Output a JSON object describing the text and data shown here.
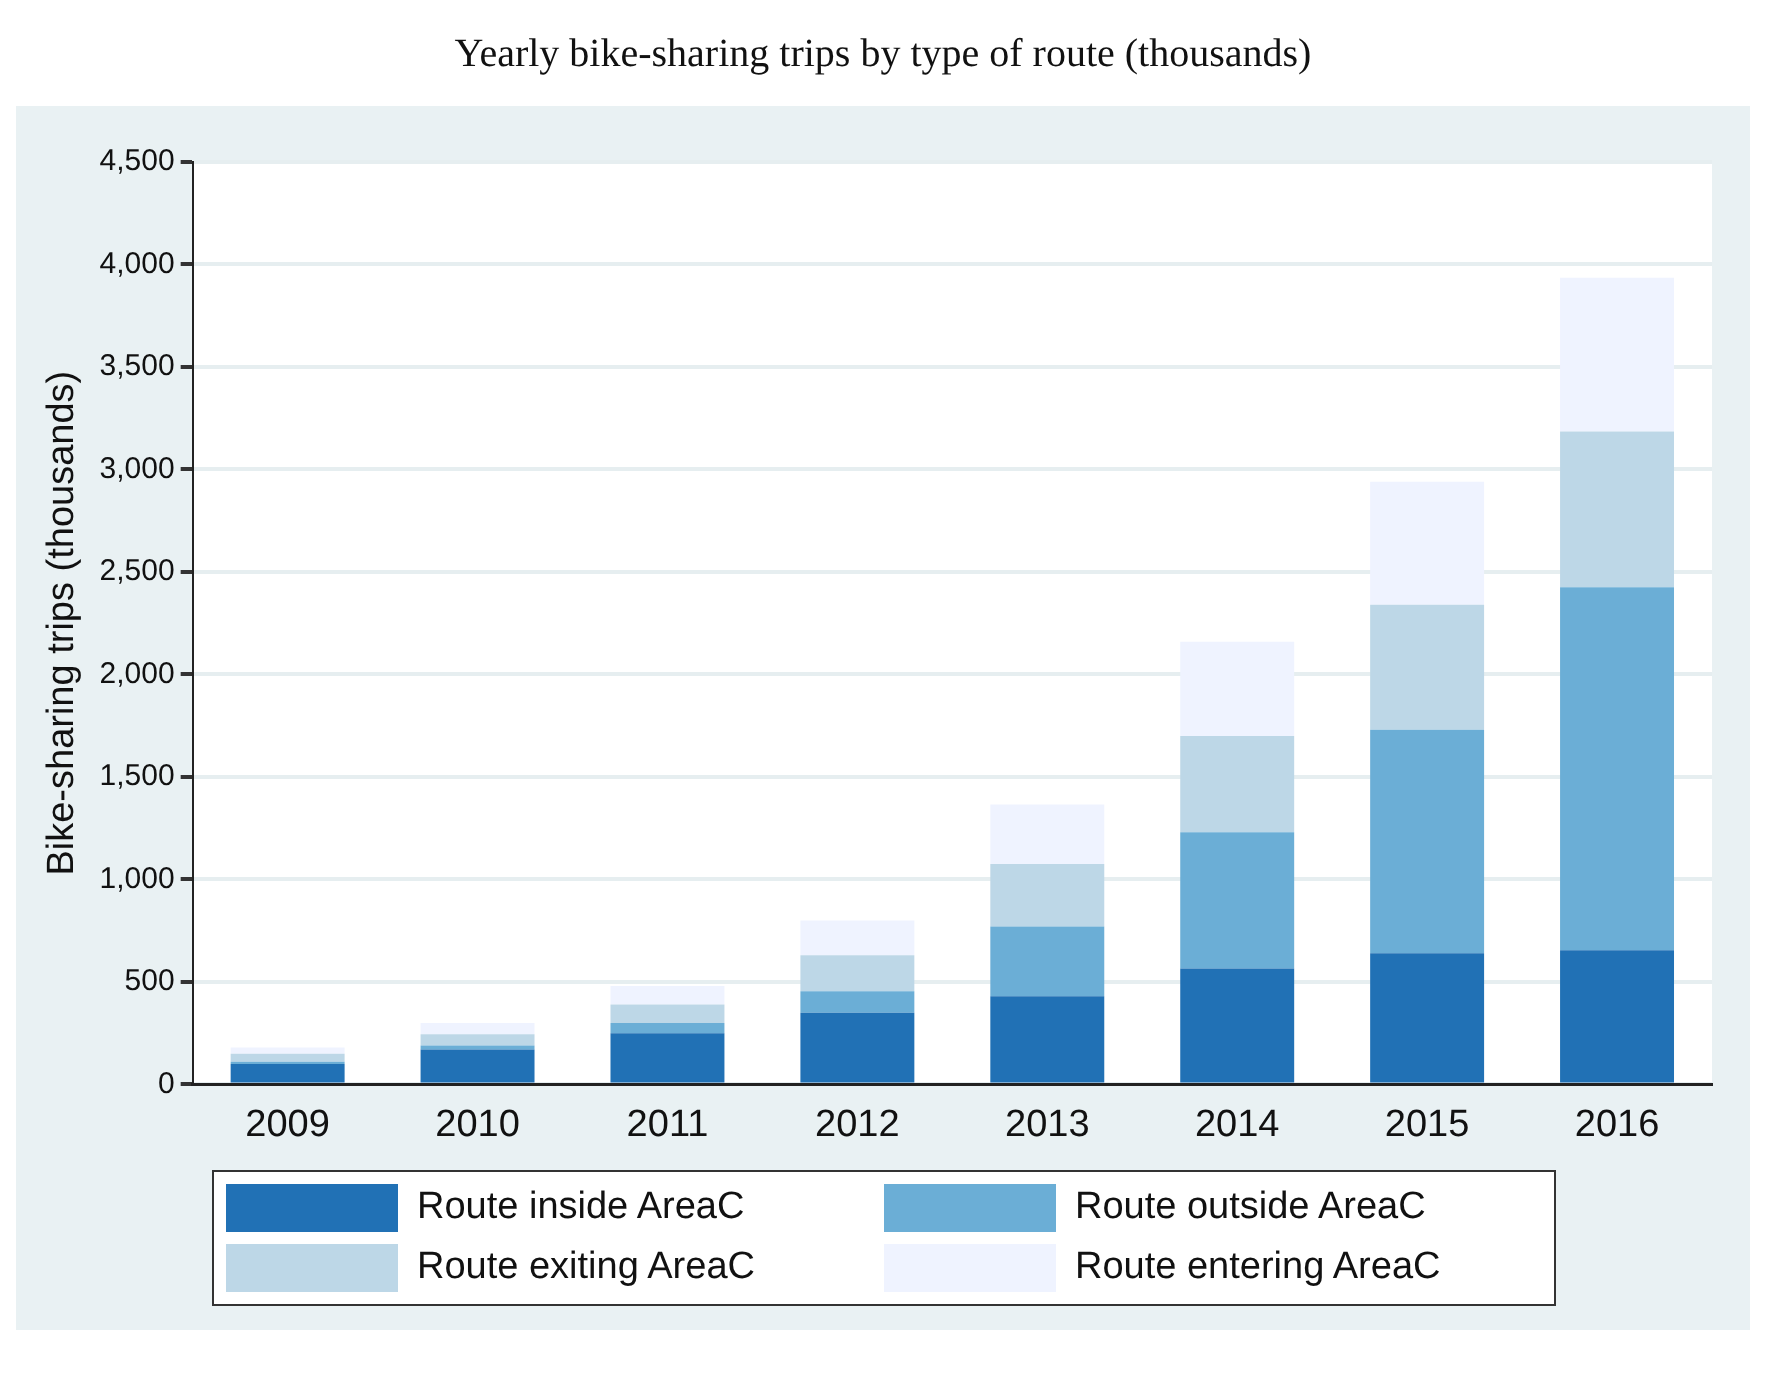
{
  "chart_data": {
    "type": "bar",
    "title": "Yearly bike-sharing trips by type of route (thousands)",
    "ylabel": "Bike-sharing trips (thousands)",
    "categories": [
      "2009",
      "2010",
      "2011",
      "2012",
      "2013",
      "2014",
      "2015",
      "2016"
    ],
    "stacked": true,
    "series": [
      {
        "name": "Route inside AreaC",
        "color": "#2171b5",
        "values": [
          100,
          170,
          250,
          350,
          430,
          565,
          640,
          655
        ]
      },
      {
        "name": "Route outside AreaC",
        "color": "#6baed6",
        "values": [
          10,
          20,
          50,
          105,
          340,
          665,
          1090,
          1770
        ]
      },
      {
        "name": "Route exiting AreaC",
        "color": "#bdd7e7",
        "values": [
          40,
          55,
          90,
          175,
          305,
          470,
          610,
          760
        ]
      },
      {
        "name": "Route entering AreaC",
        "color": "#eff3ff",
        "values": [
          30,
          55,
          90,
          170,
          290,
          460,
          600,
          750
        ]
      }
    ],
    "ylim": [
      0,
      4500
    ],
    "yticks": [
      0,
      500,
      {
        "value": 1000,
        "label": "1,000"
      },
      {
        "value": 1500,
        "label": "1,500"
      },
      {
        "value": 2000,
        "label": "2,000"
      },
      {
        "value": 2500,
        "label": "2,500"
      },
      {
        "value": 3000,
        "label": "3,000"
      },
      {
        "value": 3500,
        "label": "3,500"
      },
      {
        "value": 4000,
        "label": "4,000"
      },
      {
        "value": 4500,
        "label": "4,500"
      }
    ],
    "grid": "y",
    "legend": "bottom"
  }
}
